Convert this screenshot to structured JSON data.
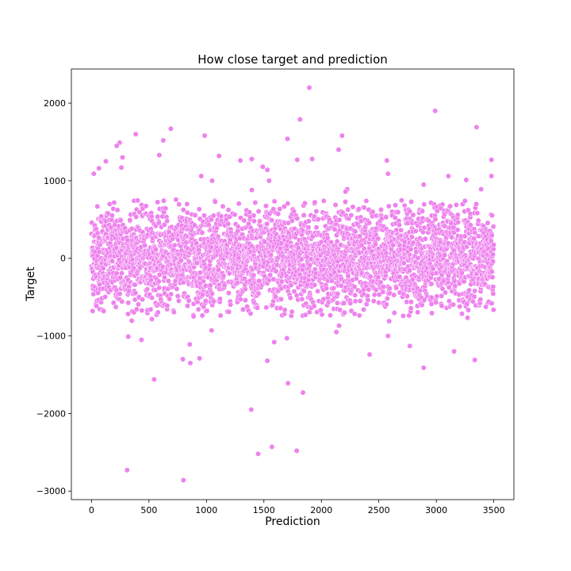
{
  "chart_data": {
    "type": "scatter",
    "title": "How close target and prediction",
    "xlabel": "Prediction",
    "ylabel": "Target",
    "xlim": [
      -175,
      3675
    ],
    "ylim": [
      -3110,
      2440
    ],
    "xticks": [
      0,
      500,
      1000,
      1500,
      2000,
      2500,
      3000,
      3500
    ],
    "yticks": [
      -3000,
      -2000,
      -1000,
      0,
      1000,
      2000
    ],
    "grid": false,
    "legend": "none",
    "marker_color": "#ee82ee",
    "marker_edge": "#ffffff",
    "n_points": 3500,
    "bulk_spread": 330,
    "outliers": [
      {
        "x": 1895,
        "y": 2200
      },
      {
        "x": 2990,
        "y": 1900
      },
      {
        "x": 1815,
        "y": 1790
      },
      {
        "x": 3350,
        "y": 1690
      },
      {
        "x": 690,
        "y": 1670
      },
      {
        "x": 385,
        "y": 1600
      },
      {
        "x": 985,
        "y": 1580
      },
      {
        "x": 2180,
        "y": 1580
      },
      {
        "x": 1705,
        "y": 1540
      },
      {
        "x": 625,
        "y": 1520
      },
      {
        "x": 245,
        "y": 1490
      },
      {
        "x": 220,
        "y": 1450
      },
      {
        "x": 2150,
        "y": 1400
      },
      {
        "x": 590,
        "y": 1330
      },
      {
        "x": 1110,
        "y": 1320
      },
      {
        "x": 270,
        "y": 1300
      },
      {
        "x": 1395,
        "y": 1280
      },
      {
        "x": 1920,
        "y": 1280
      },
      {
        "x": 1790,
        "y": 1270
      },
      {
        "x": 3480,
        "y": 1270
      },
      {
        "x": 2570,
        "y": 1260
      },
      {
        "x": 1295,
        "y": 1260
      },
      {
        "x": 125,
        "y": 1250
      },
      {
        "x": 1490,
        "y": 1180
      },
      {
        "x": 260,
        "y": 1170
      },
      {
        "x": 65,
        "y": 1160
      },
      {
        "x": 1530,
        "y": 1140
      },
      {
        "x": 20,
        "y": 1090
      },
      {
        "x": 2580,
        "y": 1090
      },
      {
        "x": 3105,
        "y": 1060
      },
      {
        "x": 3480,
        "y": 1060
      },
      {
        "x": 955,
        "y": 1060
      },
      {
        "x": 3260,
        "y": 1010
      },
      {
        "x": 1050,
        "y": 1000
      },
      {
        "x": 1545,
        "y": 1000
      },
      {
        "x": 2890,
        "y": 950
      },
      {
        "x": 2225,
        "y": 890
      },
      {
        "x": 3390,
        "y": 890
      },
      {
        "x": 1395,
        "y": 880
      },
      {
        "x": 2210,
        "y": 860
      },
      {
        "x": 2590,
        "y": -810
      },
      {
        "x": 320,
        "y": -1010
      },
      {
        "x": 435,
        "y": -1050
      },
      {
        "x": 1700,
        "y": -1030
      },
      {
        "x": 2130,
        "y": -950
      },
      {
        "x": 2580,
        "y": -1000
      },
      {
        "x": 855,
        "y": -1110
      },
      {
        "x": 2770,
        "y": -1130
      },
      {
        "x": 1590,
        "y": -1080
      },
      {
        "x": 3155,
        "y": -1200
      },
      {
        "x": 2420,
        "y": -1240
      },
      {
        "x": 795,
        "y": -1300
      },
      {
        "x": 940,
        "y": -1290
      },
      {
        "x": 860,
        "y": -1350
      },
      {
        "x": 3335,
        "y": -1310
      },
      {
        "x": 1530,
        "y": -1320
      },
      {
        "x": 2890,
        "y": -1410
      },
      {
        "x": 545,
        "y": -1560
      },
      {
        "x": 1710,
        "y": -1610
      },
      {
        "x": 1840,
        "y": -1730
      },
      {
        "x": 1390,
        "y": -1950
      },
      {
        "x": 1570,
        "y": -2430
      },
      {
        "x": 1785,
        "y": -2480
      },
      {
        "x": 1450,
        "y": -2520
      },
      {
        "x": 310,
        "y": -2730
      },
      {
        "x": 800,
        "y": -2860
      }
    ]
  }
}
